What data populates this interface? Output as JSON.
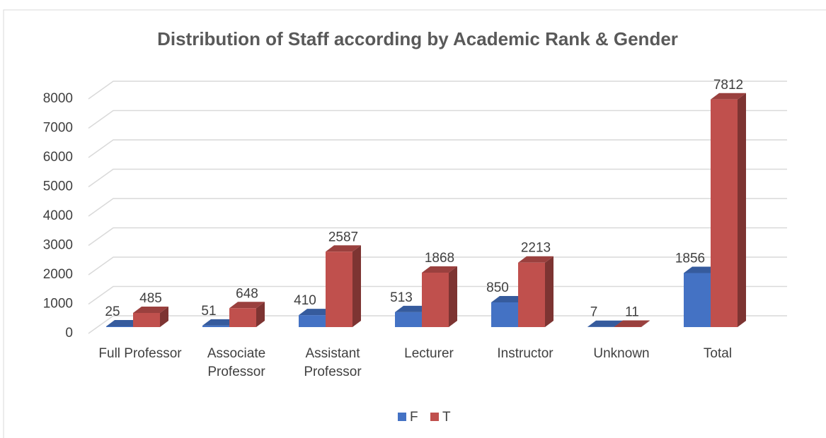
{
  "chart_data": {
    "type": "bar3d",
    "title": "Distribution of Staff according by Academic Rank & Gender",
    "categories": [
      "Full Professor",
      "Associate Professor",
      "Assistant Professor",
      "Lecturer",
      "Instructor",
      "Unknown",
      "Total"
    ],
    "series": [
      {
        "name": "F",
        "color": "#4472c4",
        "values": [
          25,
          51,
          410,
          513,
          850,
          7,
          1856
        ]
      },
      {
        "name": "T",
        "color": "#c0504d",
        "values": [
          485,
          648,
          2587,
          1868,
          2213,
          11,
          7812
        ]
      }
    ],
    "ylim": [
      0,
      8000
    ],
    "yticks": [
      0,
      1000,
      2000,
      3000,
      4000,
      5000,
      6000,
      7000,
      8000
    ],
    "grid": true,
    "legend": "bottom"
  }
}
